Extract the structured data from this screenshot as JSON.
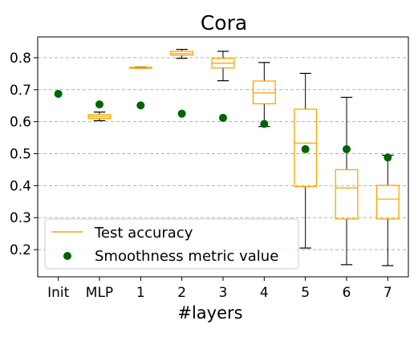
{
  "chart_data": {
    "type": "box",
    "title": "Cora",
    "xlabel": "#layers",
    "ylabel": "",
    "categories": [
      "Init",
      "MLP",
      "1",
      "2",
      "3",
      "4",
      "5",
      "6",
      "7"
    ],
    "ylim": [
      0.115,
      0.865
    ],
    "yticks": [
      0.2,
      0.3,
      0.4,
      0.5,
      0.6,
      0.7,
      0.8
    ],
    "ytick_labels": [
      "0.2",
      "0.3",
      "0.4",
      "0.5",
      "0.6",
      "0.7",
      "0.8"
    ],
    "grid": "y-dashed",
    "legend_position": "lower-left",
    "series": [
      {
        "name": "Test accuracy",
        "kind": "boxplot",
        "color": "#FFA500",
        "boxes": [
          null,
          {
            "whisker_low": 0.603,
            "q1": 0.61,
            "median": 0.616,
            "q3": 0.622,
            "whisker_high": 0.63
          },
          {
            "whisker_low": 0.767,
            "q1": 0.767,
            "median": 0.769,
            "q3": 0.77,
            "whisker_high": 0.771
          },
          {
            "whisker_low": 0.798,
            "q1": 0.808,
            "median": 0.813,
            "q3": 0.82,
            "whisker_high": 0.826
          },
          {
            "whisker_low": 0.728,
            "q1": 0.768,
            "median": 0.783,
            "q3": 0.798,
            "whisker_high": 0.82
          },
          {
            "whisker_low": 0.585,
            "q1": 0.656,
            "median": 0.69,
            "q3": 0.727,
            "whisker_high": 0.785
          },
          {
            "whisker_low": 0.205,
            "q1": 0.397,
            "median": 0.533,
            "q3": 0.639,
            "whisker_high": 0.751
          },
          {
            "whisker_low": 0.153,
            "q1": 0.296,
            "median": 0.393,
            "q3": 0.45,
            "whisker_high": 0.676
          },
          {
            "whisker_low": 0.15,
            "q1": 0.296,
            "median": 0.358,
            "q3": 0.401,
            "whisker_high": 0.495
          }
        ]
      },
      {
        "name": "Smoothness metric value",
        "kind": "scatter",
        "color": "#006400",
        "values": [
          0.687,
          0.654,
          0.651,
          0.625,
          0.612,
          0.593,
          0.514,
          0.514,
          0.488
        ]
      }
    ]
  }
}
